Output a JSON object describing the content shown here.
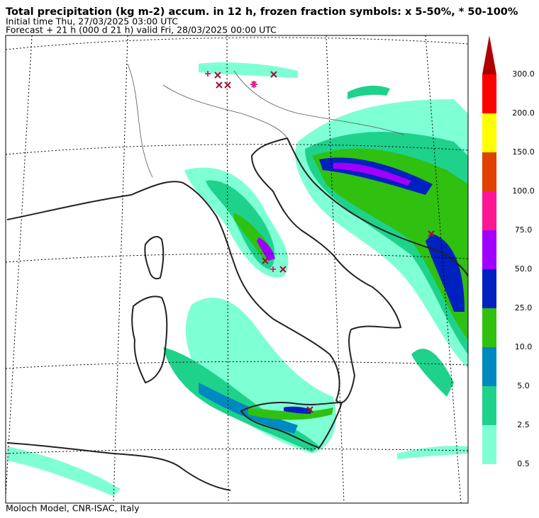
{
  "header": {
    "title": "Total precipitation (kg m-2) accum. in 12 h, frozen fraction symbols: x 5-50%, * 50-100%",
    "initial_time": "Initial time  Thu, 27/03/2025  03:00 UTC",
    "forecast": "Forecast  +  21 h  (000 d 21 h)  valid Fri, 28/03/2025 00:00 UTC"
  },
  "colorbar": {
    "levels": [
      {
        "label": "0.5",
        "color": "#7fffd4"
      },
      {
        "label": "2.5",
        "color": "#1ed28c"
      },
      {
        "label": "5.0",
        "color": "#0088c0"
      },
      {
        "label": "10.0",
        "color": "#30c010"
      },
      {
        "label": "25.0",
        "color": "#0020c0"
      },
      {
        "label": "50.0",
        "color": "#a000ff"
      },
      {
        "label": "75.0",
        "color": "#ff1493"
      },
      {
        "label": "100.0",
        "color": "#e04000"
      },
      {
        "label": "150.0",
        "color": "#ffff00"
      },
      {
        "label": "200.0",
        "color": "#ff0000"
      },
      {
        "label": "300.0",
        "color": "#b00000"
      }
    ]
  },
  "footer": "Moloch Model, CNR-ISAC, Italy"
}
